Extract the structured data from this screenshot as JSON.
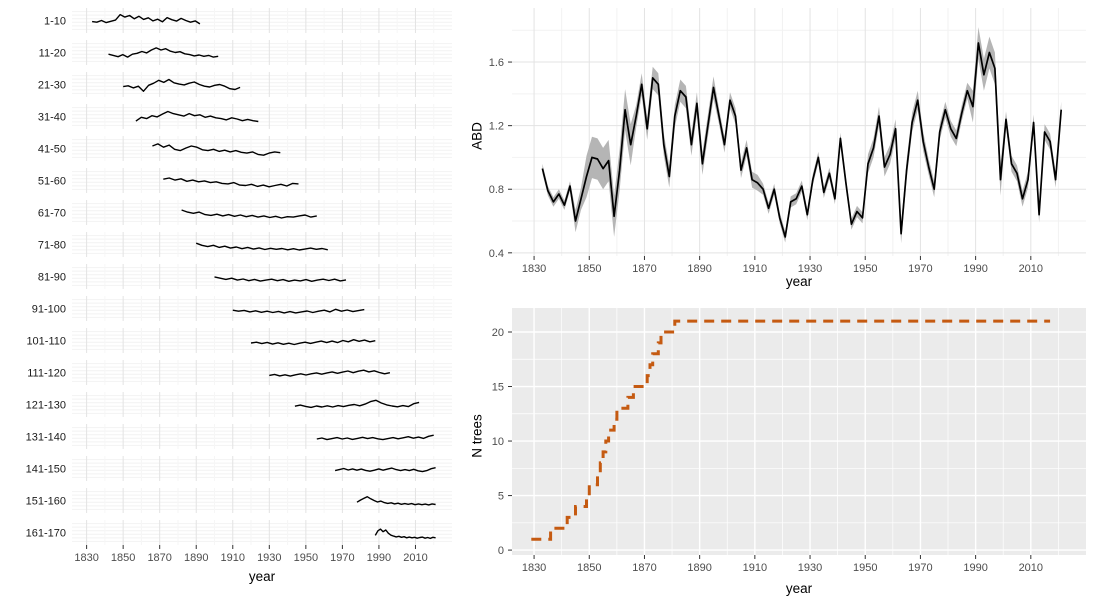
{
  "colors": {
    "series_line": "#000000",
    "ribbon": "#B5B5B5",
    "dashed_line": "#C55A11",
    "panel_gray": "#EBEBEB",
    "grid_on_white_major": "#E3E3E3",
    "grid_on_white_minor": "#F2F2F2",
    "grid_on_gray": "#FFFFFF",
    "tick_mark": "#333333",
    "tick_text": "#4D4D4D",
    "axis_title": "#000000"
  },
  "chart_data": [
    {
      "type": "line-facets",
      "x_title": "year",
      "xlim": [
        1822,
        2030
      ],
      "x_major_ticks": [
        1830,
        1850,
        1870,
        1890,
        1910,
        1930,
        1950,
        1970,
        1990,
        2010
      ],
      "x_minor_ticks": [
        1840,
        1860,
        1880,
        1900,
        1920,
        1940,
        1960,
        1980,
        2000,
        2020
      ],
      "facets": [
        {
          "label": "1-10",
          "start": 1833,
          "end": 1892,
          "values": [
            0.45,
            0.42,
            0.5,
            0.4,
            0.46,
            0.52,
            0.78,
            0.66,
            0.74,
            0.58,
            0.7,
            0.55,
            0.63,
            0.48,
            0.56,
            0.44,
            0.64,
            0.54,
            0.47,
            0.6,
            0.5,
            0.42,
            0.48,
            0.34
          ]
        },
        {
          "label": "11-20",
          "start": 1842,
          "end": 1902,
          "values": [
            0.42,
            0.36,
            0.3,
            0.4,
            0.28,
            0.42,
            0.46,
            0.55,
            0.48,
            0.62,
            0.72,
            0.62,
            0.68,
            0.56,
            0.5,
            0.54,
            0.44,
            0.4,
            0.34,
            0.38,
            0.32,
            0.36,
            0.28,
            0.32
          ]
        },
        {
          "label": "21-30",
          "start": 1850,
          "end": 1914,
          "values": [
            0.4,
            0.44,
            0.34,
            0.42,
            0.18,
            0.46,
            0.56,
            0.7,
            0.6,
            0.74,
            0.58,
            0.52,
            0.48,
            0.56,
            0.62,
            0.5,
            0.42,
            0.38,
            0.46,
            0.5,
            0.42,
            0.3,
            0.26,
            0.36
          ]
        },
        {
          "label": "31-40",
          "start": 1857,
          "end": 1924,
          "values": [
            0.28,
            0.46,
            0.4,
            0.54,
            0.48,
            0.62,
            0.74,
            0.64,
            0.58,
            0.52,
            0.64,
            0.54,
            0.58,
            0.46,
            0.52,
            0.44,
            0.4,
            0.34,
            0.44,
            0.38,
            0.3,
            0.36,
            0.3,
            0.26
          ]
        },
        {
          "label": "41-50",
          "start": 1866,
          "end": 1936,
          "values": [
            0.62,
            0.72,
            0.56,
            0.66,
            0.46,
            0.4,
            0.52,
            0.62,
            0.56,
            0.44,
            0.4,
            0.46,
            0.36,
            0.42,
            0.34,
            0.4,
            0.32,
            0.28,
            0.34,
            0.22,
            0.18,
            0.28,
            0.34,
            0.3
          ]
        },
        {
          "label": "51-60",
          "start": 1872,
          "end": 1946,
          "values": [
            0.56,
            0.62,
            0.52,
            0.58,
            0.46,
            0.52,
            0.44,
            0.48,
            0.4,
            0.44,
            0.36,
            0.34,
            0.4,
            0.28,
            0.26,
            0.32,
            0.22,
            0.28,
            0.2,
            0.26,
            0.32,
            0.24,
            0.36,
            0.34
          ]
        },
        {
          "label": "61-70",
          "start": 1882,
          "end": 1956,
          "values": [
            0.62,
            0.52,
            0.46,
            0.52,
            0.4,
            0.36,
            0.42,
            0.34,
            0.4,
            0.32,
            0.38,
            0.3,
            0.36,
            0.28,
            0.34,
            0.26,
            0.32,
            0.24,
            0.3,
            0.28,
            0.34,
            0.38,
            0.28,
            0.34
          ]
        },
        {
          "label": "71-80",
          "start": 1890,
          "end": 1962,
          "values": [
            0.56,
            0.46,
            0.4,
            0.46,
            0.36,
            0.42,
            0.33,
            0.38,
            0.3,
            0.36,
            0.28,
            0.34,
            0.26,
            0.32,
            0.27,
            0.31,
            0.25,
            0.3,
            0.24,
            0.28,
            0.33,
            0.27,
            0.31,
            0.25
          ]
        },
        {
          "label": "81-90",
          "start": 1900,
          "end": 1972,
          "values": [
            0.48,
            0.42,
            0.36,
            0.42,
            0.33,
            0.38,
            0.3,
            0.36,
            0.28,
            0.33,
            0.37,
            0.3,
            0.35,
            0.27,
            0.33,
            0.29,
            0.35,
            0.27,
            0.33,
            0.37,
            0.31,
            0.37,
            0.29,
            0.34
          ]
        },
        {
          "label": "91-100",
          "start": 1910,
          "end": 1982,
          "values": [
            0.42,
            0.37,
            0.41,
            0.34,
            0.39,
            0.32,
            0.37,
            0.31,
            0.36,
            0.29,
            0.35,
            0.29,
            0.34,
            0.38,
            0.31,
            0.37,
            0.42,
            0.34,
            0.46,
            0.37,
            0.43,
            0.35,
            0.4,
            0.45
          ]
        },
        {
          "label": "101-110",
          "start": 1920,
          "end": 1988,
          "values": [
            0.38,
            0.42,
            0.35,
            0.41,
            0.33,
            0.39,
            0.32,
            0.37,
            0.31,
            0.37,
            0.42,
            0.36,
            0.42,
            0.47,
            0.4,
            0.47,
            0.4,
            0.5,
            0.44,
            0.54,
            0.46,
            0.52,
            0.44,
            0.49
          ]
        },
        {
          "label": "111-120",
          "start": 1930,
          "end": 1996,
          "values": [
            0.36,
            0.41,
            0.34,
            0.39,
            0.33,
            0.39,
            0.44,
            0.38,
            0.44,
            0.48,
            0.42,
            0.48,
            0.53,
            0.46,
            0.52,
            0.57,
            0.49,
            0.56,
            0.61,
            0.53,
            0.58,
            0.5,
            0.44,
            0.49
          ]
        },
        {
          "label": "121-130",
          "start": 1944,
          "end": 2012,
          "values": [
            0.42,
            0.47,
            0.41,
            0.36,
            0.43,
            0.38,
            0.44,
            0.38,
            0.45,
            0.4,
            0.46,
            0.5,
            0.44,
            0.52,
            0.64,
            0.7,
            0.57,
            0.48,
            0.43,
            0.39,
            0.45,
            0.4,
            0.54,
            0.6
          ]
        },
        {
          "label": "131-140",
          "start": 1956,
          "end": 2020,
          "values": [
            0.38,
            0.43,
            0.35,
            0.4,
            0.45,
            0.38,
            0.43,
            0.36,
            0.41,
            0.46,
            0.4,
            0.45,
            0.39,
            0.35,
            0.4,
            0.45,
            0.39,
            0.44,
            0.49,
            0.42,
            0.47,
            0.41,
            0.51,
            0.56
          ]
        },
        {
          "label": "141-150",
          "start": 1966,
          "end": 2021,
          "values": [
            0.4,
            0.45,
            0.5,
            0.43,
            0.48,
            0.42,
            0.47,
            0.41,
            0.37,
            0.42,
            0.48,
            0.42,
            0.47,
            0.52,
            0.45,
            0.4,
            0.45,
            0.4,
            0.46,
            0.39,
            0.35,
            0.4,
            0.49,
            0.54
          ]
        },
        {
          "label": "151-160",
          "start": 1978,
          "end": 2021,
          "values": [
            0.42,
            0.52,
            0.6,
            0.68,
            0.58,
            0.5,
            0.43,
            0.47,
            0.4,
            0.36,
            0.39,
            0.34,
            0.37,
            0.32,
            0.35,
            0.32,
            0.35,
            0.3,
            0.34,
            0.3,
            0.33,
            0.29,
            0.34,
            0.31
          ]
        },
        {
          "label": "161-170",
          "start": 1988,
          "end": 2021,
          "values": [
            0.36,
            0.58,
            0.66,
            0.54,
            0.62,
            0.46,
            0.37,
            0.33,
            0.29,
            0.32,
            0.27,
            0.3,
            0.25,
            0.28,
            0.25,
            0.27,
            0.23,
            0.26,
            0.28,
            0.23,
            0.26,
            0.22,
            0.27,
            0.25
          ]
        }
      ]
    },
    {
      "type": "line",
      "y_title": "ABD",
      "x_title": "year",
      "xlim": [
        1822,
        2030
      ],
      "ylim": [
        0.38,
        1.94
      ],
      "y_major_ticks": [
        0.4,
        0.8,
        1.2,
        1.6
      ],
      "y_minor_ticks": [
        0.6,
        1.0,
        1.4,
        1.8
      ],
      "x_major_ticks": [
        1830,
        1850,
        1870,
        1890,
        1910,
        1930,
        1950,
        1970,
        1990,
        2010
      ],
      "x_minor_ticks": [
        1840,
        1860,
        1880,
        1900,
        1920,
        1940,
        1960,
        1980,
        2000,
        2020
      ],
      "x_start": 1833,
      "x_step": 2,
      "values": [
        0.93,
        0.79,
        0.72,
        0.77,
        0.7,
        0.82,
        0.6,
        0.74,
        0.88,
        1.0,
        0.99,
        0.93,
        0.98,
        0.63,
        0.92,
        1.3,
        1.08,
        1.26,
        1.46,
        1.18,
        1.5,
        1.46,
        1.08,
        0.88,
        1.26,
        1.42,
        1.38,
        1.08,
        1.34,
        0.96,
        1.2,
        1.44,
        1.26,
        1.08,
        1.36,
        1.26,
        0.92,
        1.06,
        0.86,
        0.84,
        0.8,
        0.68,
        0.8,
        0.62,
        0.5,
        0.72,
        0.74,
        0.82,
        0.64,
        0.86,
        1.0,
        0.78,
        0.9,
        0.74,
        1.12,
        0.84,
        0.58,
        0.66,
        0.62,
        0.96,
        1.06,
        1.26,
        0.94,
        1.02,
        1.18,
        0.52,
        0.92,
        1.22,
        1.36,
        1.1,
        0.94,
        0.8,
        1.16,
        1.3,
        1.18,
        1.12,
        1.28,
        1.42,
        1.32,
        1.72,
        1.52,
        1.66,
        1.56,
        0.86,
        1.24,
        0.96,
        0.9,
        0.74,
        0.86,
        1.22,
        0.64,
        1.16,
        1.1,
        0.86,
        1.3
      ],
      "ribbon_halfwidth": [
        [
          1833,
          1843,
          0.03
        ],
        [
          1843,
          1847,
          0.07
        ],
        [
          1847,
          1865,
          0.13
        ],
        [
          1865,
          1895,
          0.07
        ],
        [
          1895,
          1911,
          0.05
        ],
        [
          1911,
          1949,
          0.035
        ],
        [
          1949,
          1971,
          0.06
        ],
        [
          1971,
          1987,
          0.05
        ],
        [
          1987,
          1999,
          0.1
        ],
        [
          1999,
          2021,
          0.05
        ]
      ]
    },
    {
      "type": "step",
      "y_title": "N trees",
      "x_title": "year",
      "xlim": [
        1822,
        2030
      ],
      "ylim": [
        -0.45,
        22.2
      ],
      "y_major_ticks": [
        0,
        5,
        10,
        15,
        20
      ],
      "y_minor_ticks": [
        2.5,
        7.5,
        12.5,
        17.5
      ],
      "x_major_ticks": [
        1830,
        1850,
        1870,
        1890,
        1910,
        1930,
        1950,
        1970,
        1990,
        2010
      ],
      "x_minor_ticks": [
        1840,
        1860,
        1880,
        1900,
        1920,
        1940,
        1960,
        1980,
        2000,
        2020
      ],
      "steps": [
        [
          1829,
          1
        ],
        [
          1836,
          2
        ],
        [
          1842,
          3
        ],
        [
          1845,
          4
        ],
        [
          1849,
          5
        ],
        [
          1850,
          6
        ],
        [
          1853,
          7
        ],
        [
          1854,
          8
        ],
        [
          1855,
          9
        ],
        [
          1856,
          10
        ],
        [
          1857,
          11
        ],
        [
          1859,
          12
        ],
        [
          1860,
          13
        ],
        [
          1864,
          14
        ],
        [
          1866,
          15
        ],
        [
          1871,
          16
        ],
        [
          1872,
          17
        ],
        [
          1873,
          18
        ],
        [
          1875,
          19
        ],
        [
          1876,
          20
        ],
        [
          1881,
          21
        ]
      ],
      "end_year": 2017,
      "dash": [
        10,
        7
      ],
      "line_width": 3
    }
  ]
}
